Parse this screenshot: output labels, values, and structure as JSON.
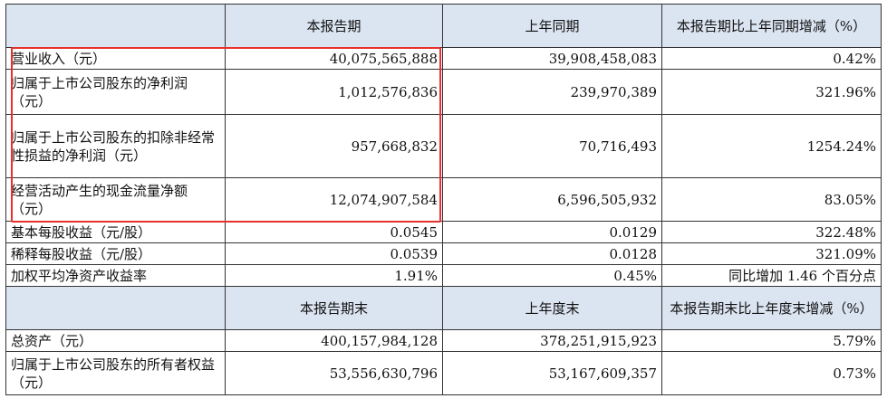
{
  "header1": {
    "label_col": "",
    "col1": "本报告期",
    "col2": "上年同期",
    "col3": "本报告期比上年同期增减（%）"
  },
  "rows1": [
    {
      "label": "营业收入（元）",
      "v1": "40,075,565,888",
      "v2": "39,908,458,083",
      "v3": "0.42%"
    },
    {
      "label": "归属于上市公司股东的净利润（元）",
      "v1": "1,012,576,836",
      "v2": "239,970,389",
      "v3": "321.96%"
    },
    {
      "label": "归属于上市公司股东的扣除非经常性损益的净利润（元）",
      "v1": "957,668,832",
      "v2": "70,716,493",
      "v3": "1254.24%"
    },
    {
      "label": "经营活动产生的现金流量净额（元）",
      "v1": "12,074,907,584",
      "v2": "6,596,505,932",
      "v3": "83.05%"
    },
    {
      "label": "基本每股收益（元/股）",
      "v1": "0.0545",
      "v2": "0.0129",
      "v3": "322.48%"
    },
    {
      "label": "稀释每股收益（元/股）",
      "v1": "0.0539",
      "v2": "0.0128",
      "v3": "321.09%"
    },
    {
      "label": "加权平均净资产收益率",
      "v1": "1.91%",
      "v2": "0.45%",
      "v3": "同比增加 1.46 个百分点"
    }
  ],
  "header2": {
    "label_col": "",
    "col1": "本报告期末",
    "col2": "上年度末",
    "col3": "本报告期末比上年度末增减（%）"
  },
  "rows2": [
    {
      "label": "总资产（元）",
      "v1": "400,157,984,128",
      "v2": "378,251,915,923",
      "v3": "5.79%"
    },
    {
      "label": "归属于上市公司股东的所有者权益（元）",
      "v1": "53,556,630,796",
      "v2": "53,167,609,357",
      "v3": "0.73%"
    }
  ],
  "highlight_color": "#e8312c",
  "header_bg": "#dbe5f1"
}
